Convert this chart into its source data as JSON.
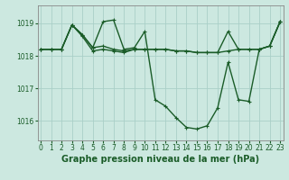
{
  "title": "Graphe pression niveau de la mer (hPa)",
  "background_color": "#cce8e0",
  "line_color": "#1a5c28",
  "grid_color": "#aacfc8",
  "x_ticks": [
    0,
    1,
    2,
    3,
    4,
    5,
    6,
    7,
    8,
    9,
    10,
    11,
    12,
    13,
    14,
    15,
    16,
    17,
    18,
    19,
    20,
    21,
    22,
    23
  ],
  "y_ticks": [
    1016,
    1017,
    1018,
    1019
  ],
  "ylim": [
    1015.4,
    1019.55
  ],
  "xlim": [
    -0.3,
    23.3
  ],
  "series": [
    [
      1018.2,
      1018.2,
      1018.2,
      1018.95,
      1018.65,
      1018.25,
      1019.05,
      1019.1,
      1018.2,
      1018.25,
      1018.75,
      1016.65,
      1016.45,
      1016.1,
      1015.8,
      1015.75,
      1015.85,
      1016.4,
      1017.8,
      1016.65,
      1016.6,
      1018.2,
      1018.3,
      1019.05
    ],
    [
      1018.2,
      1018.2,
      1018.2,
      1018.95,
      1018.65,
      1018.25,
      1018.3,
      1018.2,
      1018.15,
      1018.2,
      1018.2,
      1018.2,
      1018.2,
      1018.15,
      1018.15,
      1018.1,
      1018.1,
      1018.1,
      1018.75,
      1018.2,
      1018.2,
      1018.2,
      1018.3,
      1019.05
    ],
    [
      1018.2,
      1018.2,
      1018.2,
      1018.95,
      1018.6,
      1018.15,
      1018.2,
      1018.15,
      1018.1,
      1018.2,
      1018.2,
      1018.2,
      1018.2,
      1018.15,
      1018.15,
      1018.1,
      1018.1,
      1018.1,
      1018.15,
      1018.2,
      1018.2,
      1018.2,
      1018.3,
      1019.05
    ]
  ],
  "marker_size": 2.5,
  "line_width": 1.0,
  "tick_fontsize": 5.5,
  "title_fontsize": 7.0,
  "title_fontweight": "bold"
}
